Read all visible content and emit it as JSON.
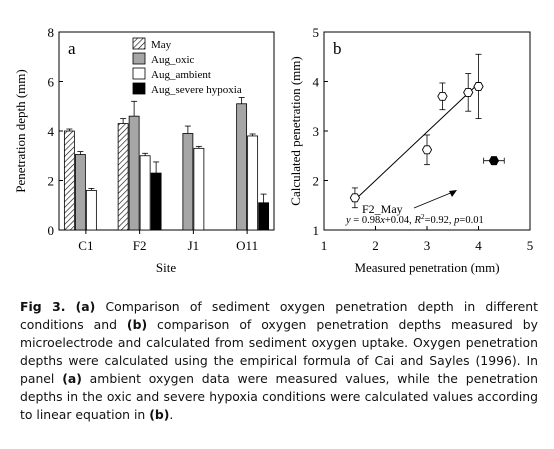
{
  "chart_data": [
    {
      "type": "bar",
      "panel_label": "a",
      "xlabel": "Site",
      "ylabel": "Penetration depth (mm)",
      "categories": [
        "C1",
        "F2",
        "J1",
        "O11"
      ],
      "ylim": [
        0,
        8
      ],
      "yticks": [
        "0",
        "2",
        "4",
        "6",
        "8"
      ],
      "grid": false,
      "legend_position": "top-right",
      "series": [
        {
          "name": "May",
          "fill": "hatch",
          "values": [
            4.0,
            4.3,
            null,
            null
          ],
          "errors": [
            0.08,
            0.2,
            null,
            null
          ]
        },
        {
          "name": "Aug_oxic",
          "fill": "#a6a6a6",
          "values": [
            3.05,
            4.6,
            3.9,
            5.1
          ],
          "errors": [
            0.12,
            0.6,
            0.3,
            0.25
          ]
        },
        {
          "name": "Aug_ambient",
          "fill": "#ffffff",
          "values": [
            1.6,
            3.0,
            3.3,
            3.8
          ],
          "errors": [
            0.08,
            0.1,
            0.08,
            0.08
          ]
        },
        {
          "name": "Aug_severe hypoxia",
          "fill": "#000000",
          "values": [
            null,
            2.3,
            null,
            1.1
          ],
          "errors": [
            null,
            0.45,
            null,
            0.35
          ]
        }
      ]
    },
    {
      "type": "scatter",
      "panel_label": "b",
      "xlabel": "Measured penetration (mm)",
      "ylabel": "Calculated penetration (mm)",
      "xlim": [
        1,
        5
      ],
      "ylim": [
        1,
        5
      ],
      "xticks": [
        "1",
        "2",
        "3",
        "4",
        "5"
      ],
      "yticks": [
        "1",
        "2",
        "3",
        "4",
        "5"
      ],
      "grid": false,
      "points": [
        {
          "x": 1.6,
          "y": 1.65,
          "yerr": 0.2,
          "filled": false
        },
        {
          "x": 3.0,
          "y": 2.62,
          "yerr": 0.3,
          "filled": false
        },
        {
          "x": 3.3,
          "y": 3.7,
          "yerr": 0.27,
          "filled": false
        },
        {
          "x": 3.8,
          "y": 3.78,
          "yerr": 0.38,
          "filled": false
        },
        {
          "x": 4.0,
          "y": 3.9,
          "yerr": 0.65,
          "filled": false
        },
        {
          "x": 4.3,
          "y": 2.4,
          "yerr": 0.08,
          "xerr": 0.2,
          "filled": true
        }
      ],
      "fit_line": {
        "slope": 0.98,
        "intercept": 0.04,
        "x_range": [
          1.6,
          4.0
        ]
      },
      "annotation": "F2_May",
      "equation": {
        "y": "y",
        "eq1": " = 0.98",
        "x": "x",
        "eq2": "+0.04, ",
        "R": "R",
        "sup": "2",
        "eq3": "=0.92, ",
        "p": "p",
        "eq4": "=0.01"
      }
    }
  ],
  "caption": {
    "fig": "Fig 3.",
    "a1": "(a)",
    "t1": " Comparison of sediment oxygen penetration depth in different conditions and ",
    "b1": "(b)",
    "t2": " comparison of oxygen penetration depths measured by microelectrode and calculated from sediment oxygen uptake. Oxygen penetration depths were calculated using the empirical formula of Cai and Sayles (1996). In panel ",
    "a2": "(a)",
    "t3": " ambient oxygen data were measured values, while the penetration depths in the oxic and severe hypoxia conditions were calculated values according to linear equation in ",
    "b2": "(b)",
    "t4": "."
  }
}
